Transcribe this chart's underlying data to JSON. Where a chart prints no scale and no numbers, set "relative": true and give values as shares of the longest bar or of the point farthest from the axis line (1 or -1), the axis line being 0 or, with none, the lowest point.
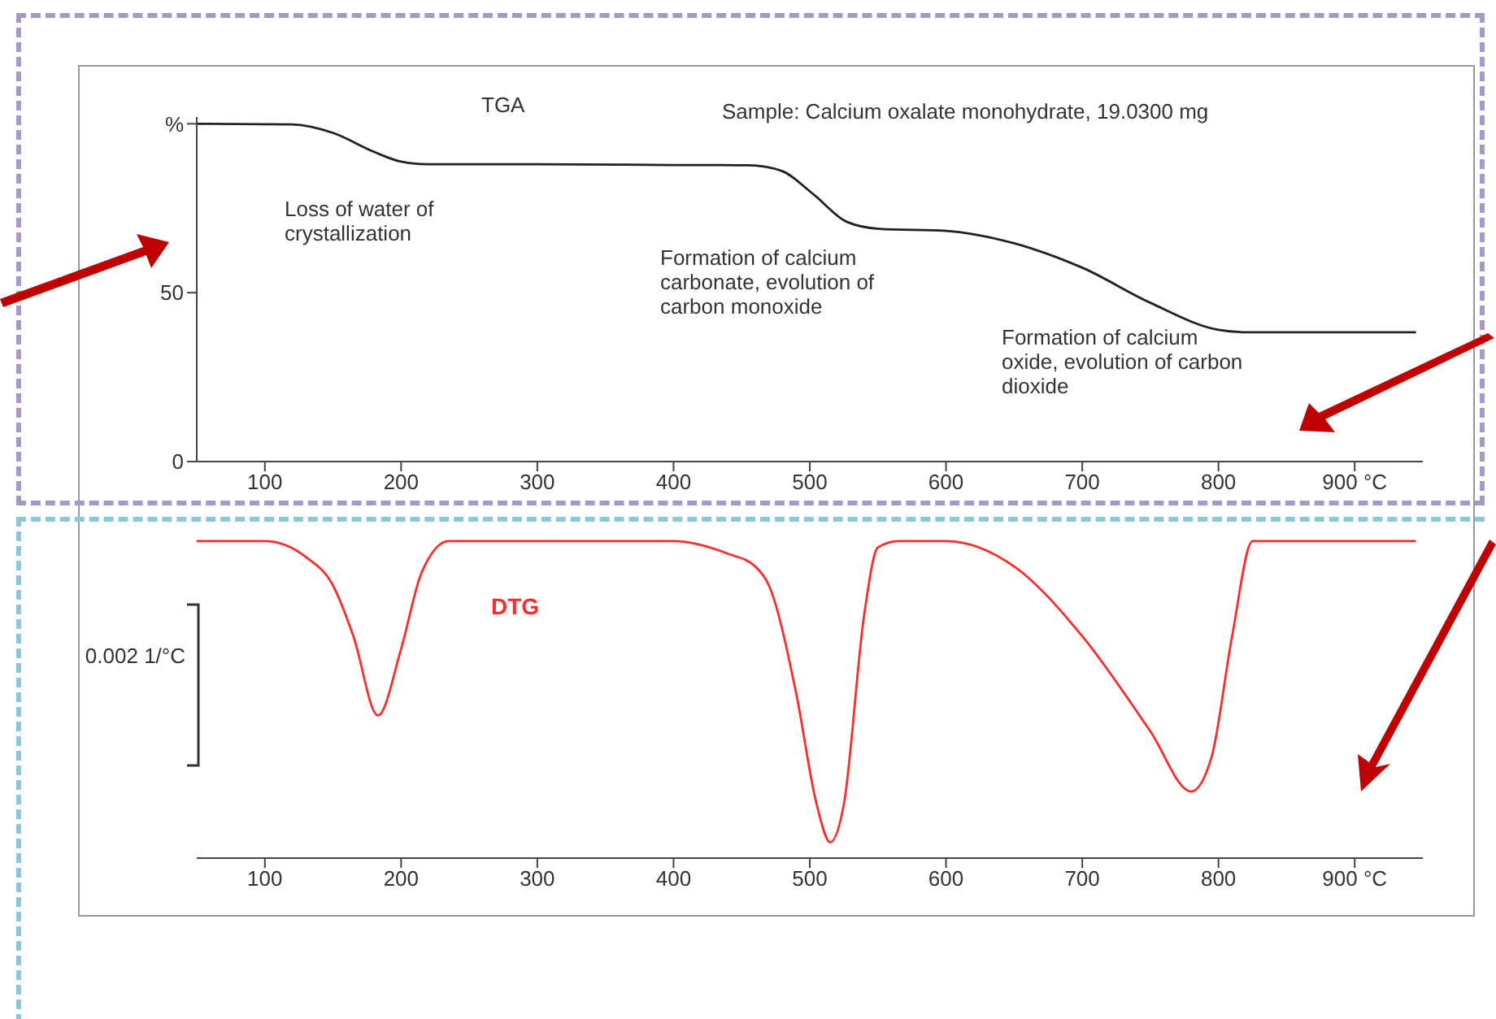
{
  "chart_data": [
    {
      "type": "line",
      "title": "TGA",
      "subtitle": "Sample: Calcium oxalate monohydrate, 19.0300 mg",
      "marker": "none",
      "annotations": [
        "Loss of  water of crystallization",
        "Formation of calcium carbonate, evolution of carbon monoxide",
        "Formation of calcium oxide, evolution of carbon dioxide"
      ],
      "xlim": [
        50,
        950
      ],
      "xticks": [
        100,
        200,
        300,
        400,
        500,
        600,
        700,
        800,
        {
          "value": 900,
          "label": "900 °C"
        }
      ],
      "ylim": [
        0,
        102
      ],
      "yticks": [
        0,
        50,
        {
          "value": 100,
          "label": "%"
        }
      ],
      "series": [
        {
          "color": "#222222",
          "x": [
            50,
            120,
            150,
            180,
            200,
            220,
            300,
            400,
            455,
            479,
            503,
            527,
            551,
            600,
            650,
            700,
            750,
            800,
            820,
            945
          ],
          "values": [
            100,
            99.8,
            97.3,
            91.7,
            88.8,
            88,
            88,
            87.8,
            87.7,
            86.1,
            79,
            71,
            68.9,
            68.3,
            64.6,
            57.4,
            47,
            39,
            38.3,
            38.3
          ]
        }
      ]
    },
    {
      "type": "line",
      "relative": true,
      "marker": "none",
      "tick_labels": "x",
      "annotations": [
        "0.002 1/°C"
      ],
      "xlim": [
        50,
        950
      ],
      "xticks": [
        100,
        200,
        300,
        400,
        500,
        600,
        700,
        800,
        {
          "value": 900,
          "label": "900 °C"
        }
      ],
      "series": [
        {
          "name": "DTG",
          "color": "#ff2a2a",
          "x": [
            50,
            100,
            130,
            150,
            165,
            183,
            200,
            215,
            235,
            400,
            440,
            460,
            470,
            490,
            505,
            515,
            525,
            540,
            550,
            565,
            600,
            650,
            700,
            750,
            780,
            795,
            810,
            825,
            945
          ],
          "values": [
            1,
            1,
            0.95,
            0.86,
            0.7,
            0.45,
            0.66,
            0.9,
            1,
            1,
            0.96,
            0.92,
            0.86,
            0.52,
            0.17,
            0.05,
            0.17,
            0.77,
            0.98,
            1,
            1,
            0.92,
            0.7,
            0.4,
            0.21,
            0.32,
            0.7,
            1,
            1
          ]
        }
      ]
    }
  ]
}
